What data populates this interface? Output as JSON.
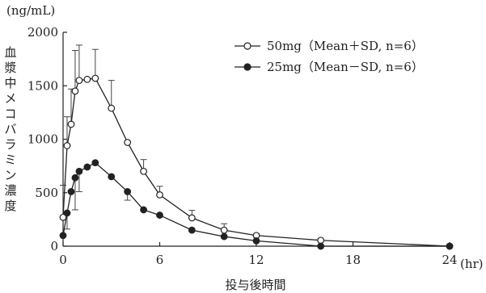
{
  "chart_data": {
    "type": "line",
    "unit_label": "(ng/mL)",
    "ylabel": "血漿中メコバラミン濃度",
    "xlabel": "投与後時間",
    "x_unit": "(hr)",
    "xlim": [
      0,
      24
    ],
    "ylim": [
      0,
      2000
    ],
    "xticks": [
      0,
      6,
      12,
      18,
      24
    ],
    "yticks": [
      0,
      500,
      1000,
      1500,
      2000
    ],
    "grid": false,
    "legend_position": "top-right",
    "series": [
      {
        "name": "50mg（Mean＋SD, n=6）",
        "marker": "open-circle",
        "error_direction": "up",
        "x": [
          0,
          0.25,
          0.5,
          0.75,
          1,
          1.5,
          2,
          3,
          4,
          5,
          6,
          8,
          10,
          12,
          16,
          24
        ],
        "y": [
          270,
          940,
          1140,
          1450,
          1550,
          1560,
          1570,
          1290,
          970,
          700,
          480,
          265,
          150,
          100,
          55,
          0
        ],
        "sd": [
          300,
          270,
          330,
          380,
          330,
          0,
          270,
          260,
          0,
          110,
          80,
          70,
          60,
          0,
          0,
          0
        ]
      },
      {
        "name": "25mg（Mean－SD, n=6）",
        "marker": "filled-circle",
        "error_direction": "down",
        "x": [
          0,
          0.25,
          0.5,
          0.75,
          1,
          1.5,
          2,
          3,
          4,
          5,
          6,
          8,
          10,
          12,
          16,
          24
        ],
        "y": [
          100,
          310,
          510,
          640,
          700,
          740,
          780,
          650,
          510,
          340,
          290,
          150,
          90,
          50,
          0,
          0
        ],
        "sd": [
          0,
          150,
          0,
          300,
          190,
          0,
          0,
          0,
          80,
          0,
          0,
          0,
          0,
          0,
          0,
          0
        ]
      }
    ]
  }
}
